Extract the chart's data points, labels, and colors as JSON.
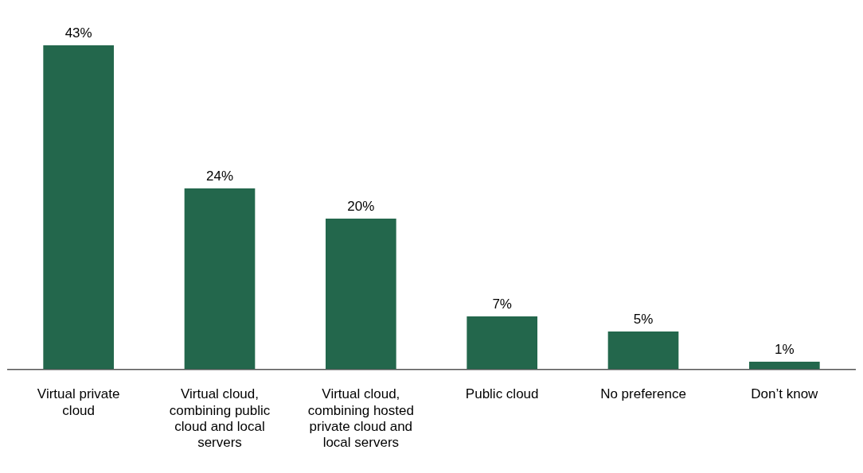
{
  "chart_data": {
    "type": "bar",
    "categories": [
      "Virtual private cloud",
      "Virtual cloud, combining public cloud and local servers",
      "Virtual cloud, combining hosted private cloud and local servers",
      "Public cloud",
      "No preference",
      "Don’t know"
    ],
    "values": [
      43,
      24,
      20,
      7,
      5,
      1
    ],
    "value_labels": [
      "43%",
      "24%",
      "20%",
      "7%",
      "5%",
      "1%"
    ],
    "color": "#23674c",
    "grid": false,
    "legend": false
  }
}
